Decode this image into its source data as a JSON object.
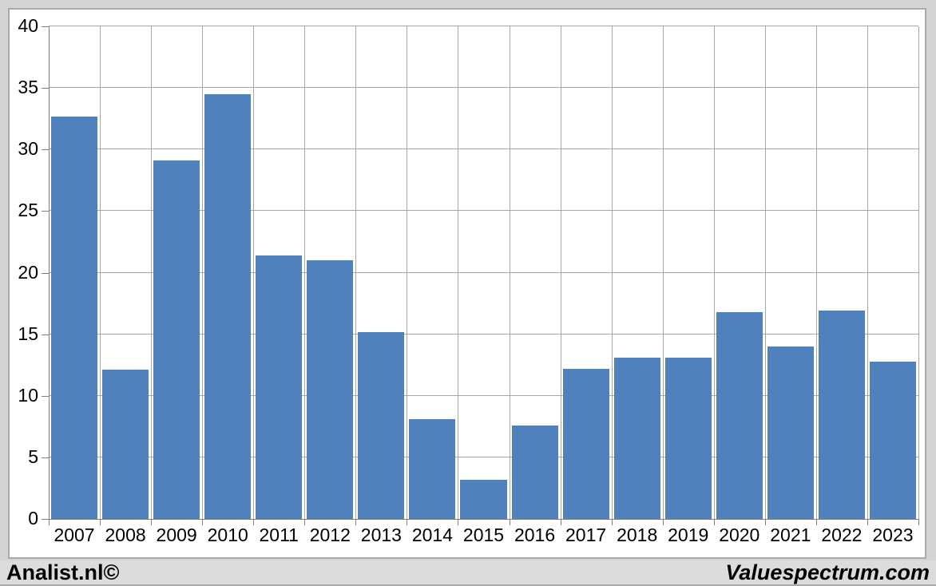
{
  "footer": {
    "left": "Analist.nl©",
    "right": "Valuespectrum.com"
  },
  "chart_data": {
    "type": "bar",
    "title": "",
    "xlabel": "",
    "ylabel": "",
    "categories": [
      "2007",
      "2008",
      "2009",
      "2010",
      "2011",
      "2012",
      "2013",
      "2014",
      "2015",
      "2016",
      "2017",
      "2018",
      "2019",
      "2020",
      "2021",
      "2022",
      "2023"
    ],
    "values": [
      32.7,
      12.1,
      29.1,
      34.5,
      21.4,
      21.0,
      15.2,
      8.1,
      3.2,
      7.6,
      12.2,
      13.1,
      13.1,
      16.8,
      14.0,
      16.9,
      12.8
    ],
    "ylim": [
      0,
      40
    ],
    "ytick_step": 5,
    "yticks": [
      0,
      5,
      10,
      15,
      20,
      25,
      30,
      35,
      40
    ],
    "grid": true,
    "legend": false,
    "colors": {
      "bar": "#4F81BD",
      "grid": "#A6A6A6",
      "axis": "#7F7F7F",
      "text": "#000000",
      "plot_bg": "#FFFFFF",
      "panel_border": "#A9A9A9",
      "page_bg": "#D4D4D4",
      "footer_bg": "#DCDCDC"
    }
  }
}
